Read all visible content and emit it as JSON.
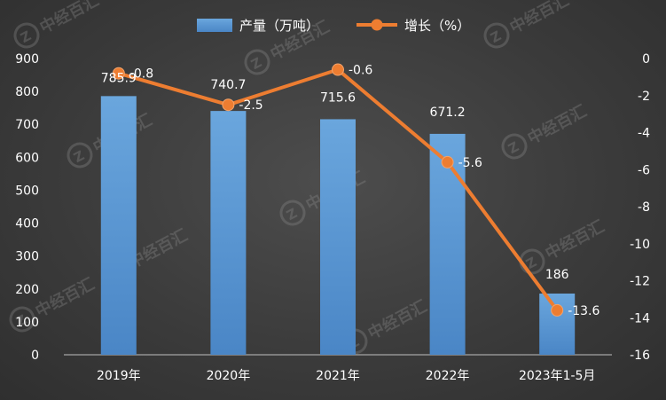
{
  "chart_data": {
    "type": "bar+line",
    "categories": [
      "2019年",
      "2020年",
      "2021年",
      "2022年",
      "2023年1-5月"
    ],
    "series": [
      {
        "name": "产量（万吨）",
        "type": "bar",
        "axis": "left",
        "values": [
          785.9,
          740.7,
          715.6,
          671.2,
          186
        ],
        "labels": [
          "785.9",
          "740.7",
          "715.6",
          "671.2",
          "186"
        ]
      },
      {
        "name": "增长（%）",
        "type": "line",
        "axis": "right",
        "values": [
          -0.8,
          -2.5,
          -0.6,
          -5.6,
          -13.6
        ],
        "labels": [
          "-0.8",
          "-2.5",
          "-0.6",
          "-5.6",
          "-13.6"
        ]
      }
    ],
    "left_axis": {
      "ylim": [
        0,
        900
      ],
      "ticks": [
        "0",
        "100",
        "200",
        "300",
        "400",
        "500",
        "600",
        "700",
        "800",
        "900"
      ]
    },
    "right_axis": {
      "ylim": [
        -16,
        0
      ],
      "ticks": [
        "0",
        "-2",
        "-4",
        "-6",
        "-8",
        "-10",
        "-12",
        "-14",
        "-16"
      ]
    },
    "legend_position": "top-center",
    "grid": false,
    "colors": {
      "bar": "#5b9bd5",
      "line": "#ed7d31",
      "background": "#3c3c3c",
      "text": "#ffffff"
    },
    "watermark": "中经百汇"
  }
}
